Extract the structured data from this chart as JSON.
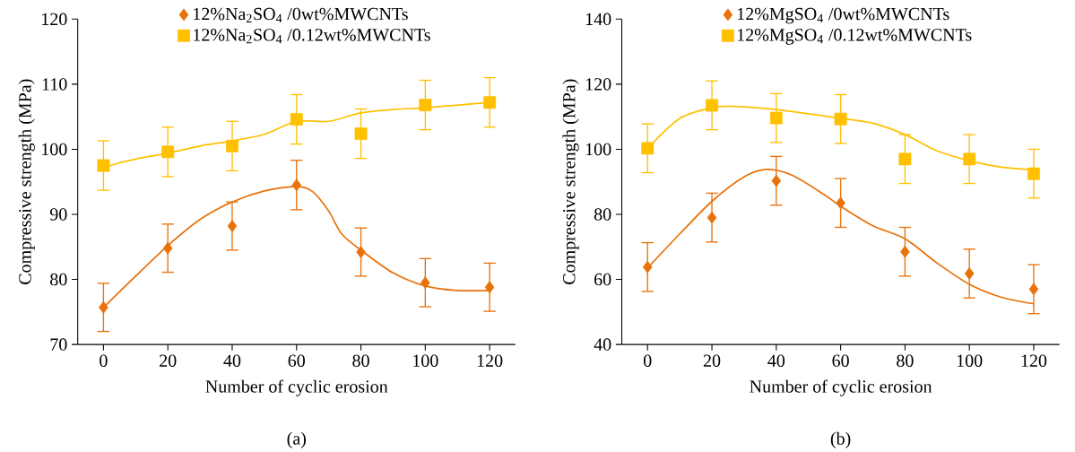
{
  "chart_data": [
    {
      "type": "scatter",
      "xlabel": "Number of cyclic erosion",
      "ylabel": "Compressive strength (MPa)",
      "annotations": [
        "(a)"
      ],
      "x": [
        0,
        20,
        40,
        60,
        80,
        100,
        120
      ],
      "xlim": [
        -8,
        128
      ],
      "xticks": [
        0,
        20,
        40,
        60,
        80,
        100,
        120
      ],
      "ylim": [
        70,
        120
      ],
      "yticks": [
        70,
        80,
        90,
        100,
        110,
        120
      ],
      "legend": "top left",
      "series": [
        {
          "name": "12%Na$_{2}$SO$_{4}$ /0wt%MWCNTs",
          "marker": "diamond",
          "color": "#e8710a",
          "values": [
            75.7,
            84.8,
            88.2,
            94.5,
            84.2,
            79.5,
            78.8
          ],
          "errors": [
            3.7,
            3.7,
            3.7,
            3.8,
            3.7,
            3.7,
            3.7
          ]
        },
        {
          "name": "12%Na$_{2}$SO$_{4}$ /0.12wt%MWCNTs",
          "marker": "square",
          "color": "#ffc000",
          "values": [
            97.5,
            99.6,
            100.5,
            104.6,
            102.4,
            106.8,
            107.2
          ],
          "errors": [
            3.8,
            3.8,
            3.8,
            3.8,
            3.8,
            3.8,
            3.8
          ]
        },
        {
          "type": "line",
          "marker": "none",
          "color": "#e8710a",
          "x": [
            0,
            10,
            20,
            30,
            40,
            50,
            60,
            65,
            70,
            74,
            80,
            90,
            100,
            110,
            120
          ],
          "values": [
            75.7,
            80.5,
            85.2,
            89.2,
            91.9,
            93.6,
            94.3,
            93.5,
            90.5,
            87,
            84.5,
            81,
            79,
            78.3,
            78.3
          ]
        },
        {
          "type": "line",
          "marker": "none",
          "color": "#ffc000",
          "x": [
            0,
            2,
            10,
            20,
            30,
            40,
            50,
            60,
            70,
            80,
            90,
            100,
            120
          ],
          "values": [
            97,
            97.5,
            98.5,
            99.4,
            100.5,
            101.3,
            102.3,
            104.3,
            104.3,
            105.6,
            106.1,
            106.4,
            107.2
          ]
        }
      ]
    },
    {
      "type": "scatter",
      "xlabel": "Number of cyclic erosion",
      "ylabel": "Compressive strength (MPa)",
      "annotations": [
        "(b)"
      ],
      "x": [
        0,
        20,
        40,
        60,
        80,
        100,
        120
      ],
      "xlim": [
        -8,
        128
      ],
      "xticks": [
        0,
        20,
        40,
        60,
        80,
        100,
        120
      ],
      "ylim": [
        40,
        140
      ],
      "yticks": [
        40,
        60,
        80,
        100,
        120,
        140
      ],
      "legend": "top left",
      "series": [
        {
          "name": "12%MgSO$_{4}$ /0wt%MWCNTs",
          "marker": "diamond",
          "color": "#e8710a",
          "values": [
            63.8,
            79,
            90.3,
            83.5,
            68.5,
            61.8,
            57
          ],
          "errors": [
            7.5,
            7.5,
            7.5,
            7.5,
            7.5,
            7.5,
            7.5
          ]
        },
        {
          "name": "12%MgSO$_{4}$ /0.12wt%MWCNTs",
          "marker": "square",
          "color": "#ffc000",
          "values": [
            100.3,
            113.5,
            109.6,
            109.3,
            97,
            97,
            92.5
          ],
          "errors": [
            7.5,
            7.5,
            7.5,
            7.5,
            7.5,
            7.5,
            7.5
          ]
        },
        {
          "type": "line",
          "marker": "none",
          "color": "#e8710a",
          "x": [
            0,
            10,
            20,
            30,
            37,
            45,
            55,
            60,
            70,
            80,
            90,
            100,
            110,
            120
          ],
          "values": [
            63.5,
            74,
            84,
            91.5,
            93.8,
            92,
            86,
            82.5,
            76.5,
            72.5,
            65,
            58.5,
            54.5,
            52.5
          ]
        },
        {
          "type": "line",
          "marker": "none",
          "color": "#ffc000",
          "x": [
            0,
            10,
            20,
            27,
            40,
            60,
            70,
            80,
            90,
            100,
            110,
            120
          ],
          "values": [
            100.3,
            109.5,
            112.8,
            113.2,
            112.2,
            109.5,
            108,
            104.5,
            99.5,
            96.5,
            94.5,
            93.7
          ]
        }
      ]
    }
  ]
}
